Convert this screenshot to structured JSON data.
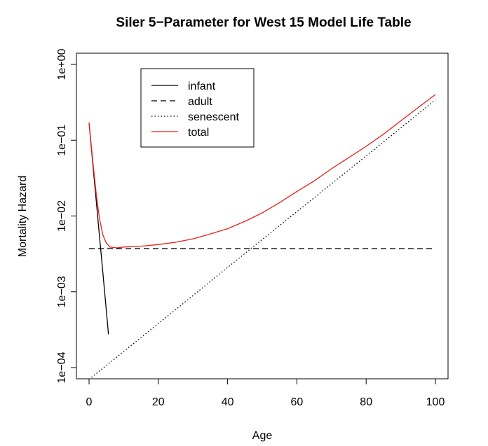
{
  "chart_data": {
    "type": "line",
    "title": "Siler 5−Parameter for West 15 Model Life Table",
    "xlabel": "Age",
    "ylabel": "Mortality Hazard",
    "xlim": [
      0,
      100
    ],
    "ylim": [
      0.0001,
      1
    ],
    "y_scale": "log",
    "x_ticks": [
      0,
      20,
      40,
      60,
      80,
      100
    ],
    "x_tick_labels": [
      "0",
      "20",
      "40",
      "60",
      "80",
      "100"
    ],
    "y_ticks": [
      0.0001,
      0.001,
      0.01,
      0.1,
      1
    ],
    "y_tick_labels": [
      "1e−04",
      "1e−03",
      "1e−02",
      "1e−01",
      "1e+00"
    ],
    "grid": false,
    "legend_position": "top-left",
    "series": [
      {
        "name": "infant",
        "color": "#000000",
        "line_style": "solid",
        "x": [
          0,
          1,
          2,
          3,
          4,
          5,
          5.6
        ],
        "y": [
          0.17,
          0.054,
          0.0172,
          0.0055,
          0.00175,
          0.00056,
          0.000275
        ]
      },
      {
        "name": "adult",
        "color": "#000000",
        "line_style": "dashed",
        "x": [
          0,
          100
        ],
        "y": [
          0.0037,
          0.0037
        ]
      },
      {
        "name": "senescent",
        "color": "#000000",
        "line_style": "dotted",
        "x": [
          0,
          10,
          20,
          30,
          40,
          50,
          60,
          70,
          80,
          90,
          100
        ],
        "y": [
          7e-05,
          0.000163,
          0.00038,
          0.00089,
          0.0021,
          0.0049,
          0.0114,
          0.0266,
          0.062,
          0.145,
          0.34
        ]
      },
      {
        "name": "total",
        "color": "#e8211b",
        "line_style": "solid",
        "x": [
          0,
          1,
          2,
          3,
          4,
          5,
          6,
          8,
          10,
          15,
          20,
          25,
          30,
          35,
          40,
          45,
          50,
          55,
          60,
          65,
          70,
          75,
          80,
          85,
          90,
          95,
          100
        ],
        "y": [
          0.17,
          0.058,
          0.021,
          0.0093,
          0.0056,
          0.0044,
          0.0039,
          0.0038,
          0.0039,
          0.004,
          0.0042,
          0.0045,
          0.005,
          0.0058,
          0.0068,
          0.0085,
          0.011,
          0.015,
          0.021,
          0.029,
          0.042,
          0.059,
          0.083,
          0.12,
          0.18,
          0.27,
          0.4
        ]
      }
    ]
  }
}
